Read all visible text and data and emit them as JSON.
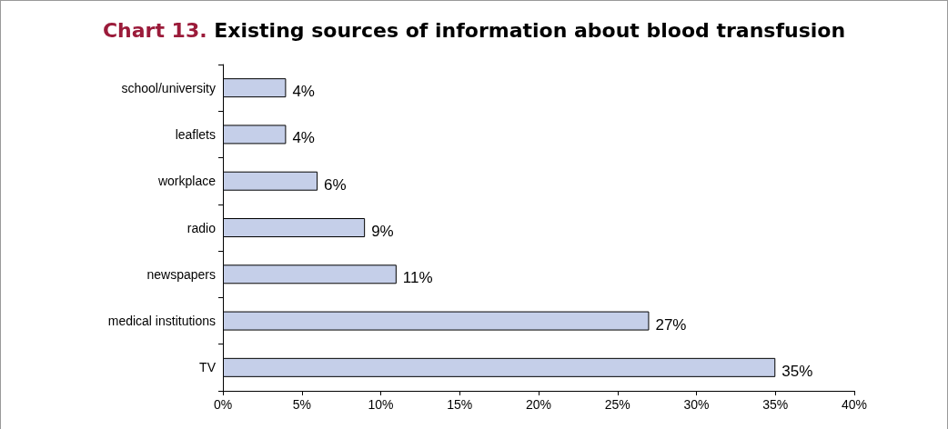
{
  "chart_data": {
    "type": "bar",
    "orientation": "horizontal",
    "title": "Chart 13. Existing sources of information about blood transfusion",
    "categories": [
      "school/university",
      "leaflets",
      "workplace",
      "radio",
      "newspapers",
      "medical institutions",
      "TV"
    ],
    "values": [
      4,
      4,
      6,
      9,
      11,
      27,
      35
    ],
    "value_labels": [
      "4%",
      "4%",
      "6%",
      "9%",
      "11%",
      "27%",
      "35%"
    ],
    "color": "#c5cfe9",
    "xlim": [
      0,
      40
    ],
    "xticks": [
      {
        "value": 0,
        "label": "0%"
      },
      {
        "value": 5,
        "label": "5%"
      },
      {
        "value": 10,
        "label": "10%"
      },
      {
        "value": 15,
        "label": "15%"
      },
      {
        "value": 20,
        "label": "20%"
      },
      {
        "value": 25,
        "label": "25%"
      },
      {
        "value": 30,
        "label": "30%"
      },
      {
        "value": 35,
        "label": "35%"
      },
      {
        "value": 40,
        "label": "40%"
      }
    ],
    "grid": false
  }
}
